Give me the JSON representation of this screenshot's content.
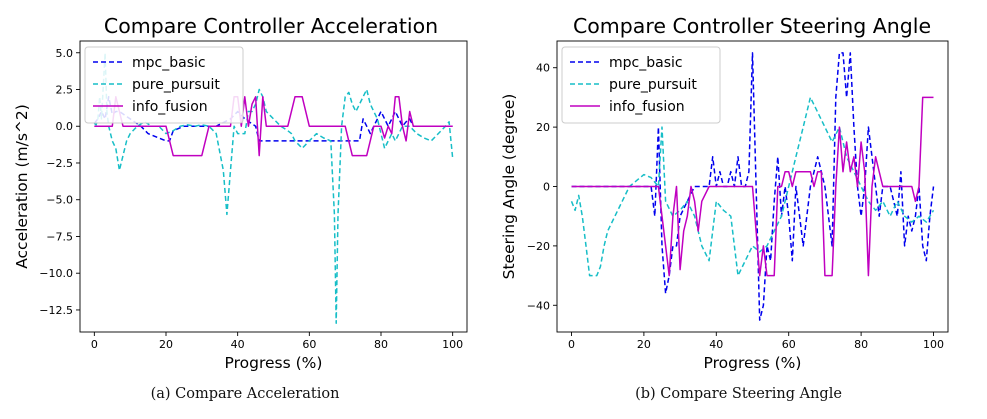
{
  "figure": {
    "captions": [
      "(a) Compare Acceleration",
      "(b) Compare Steering Angle"
    ]
  },
  "colors": {
    "mpc_basic": "#0000ee",
    "pure_pursuit": "#17bec7",
    "info_fusion": "#c000c0"
  },
  "chart_data": [
    {
      "type": "line",
      "title": "Compare Controller Acceleration",
      "xlabel": "Progress (%)",
      "ylabel": "Acceleration (m/s^2)",
      "xlim": [
        -4,
        104
      ],
      "ylim": [
        -14.0,
        5.8
      ],
      "xticks": [
        0,
        20,
        40,
        60,
        80,
        100
      ],
      "yticks": [
        5.0,
        2.5,
        0.0,
        -2.5,
        -5.0,
        -7.5,
        -10.0,
        -12.5
      ],
      "ytick_labels": [
        "5.0",
        "2.5",
        "0.0",
        "−2.5",
        "−5.0",
        "−7.5",
        "−10.0",
        "−12.5"
      ],
      "legend": "top-left",
      "grid": false,
      "series": [
        {
          "name": "mpc_basic",
          "style": "dashed",
          "x": [
            0,
            1,
            2,
            3,
            4,
            5,
            6,
            7,
            10,
            13,
            15,
            18,
            20,
            21,
            22,
            25,
            28,
            30,
            34,
            38,
            40,
            42,
            45,
            46,
            47,
            50,
            55,
            60,
            65,
            70,
            72,
            74,
            75,
            76,
            77,
            78,
            79,
            80,
            81,
            82,
            83,
            84,
            85,
            86,
            87,
            88,
            89,
            90,
            92,
            94,
            96,
            98,
            100
          ],
          "y": [
            0.2,
            0.5,
            1.0,
            0.5,
            2.0,
            0.8,
            1.0,
            1.0,
            0.5,
            0.0,
            -0.5,
            -0.8,
            -1.0,
            -1.0,
            -0.3,
            0.0,
            0.0,
            0.0,
            0.0,
            0.5,
            1.0,
            0.5,
            0.0,
            -1.0,
            -1.0,
            -1.0,
            -1.0,
            -1.0,
            -1.0,
            -1.0,
            -1.0,
            -1.0,
            0.5,
            0.0,
            -0.5,
            0.0,
            0.5,
            1.0,
            0.5,
            0.0,
            0.5,
            1.0,
            0.5,
            0.0,
            0.3,
            0.5,
            0.0,
            0.0,
            0.0,
            0.0,
            0.0,
            0.0,
            0.0
          ]
        },
        {
          "name": "pure_pursuit",
          "style": "dashed",
          "x": [
            0,
            0.5,
            1,
            1.5,
            2,
            3,
            3.5,
            4,
            5,
            6,
            7,
            8,
            9,
            10,
            12,
            14,
            16,
            18,
            20,
            22,
            24,
            26,
            28,
            30,
            32,
            34,
            36,
            37,
            38,
            39,
            40,
            41,
            42,
            43,
            44,
            45,
            46,
            47,
            48,
            50,
            52,
            54,
            55,
            56,
            58,
            60,
            62,
            64,
            66,
            67,
            67.5,
            68,
            69,
            70,
            71,
            72,
            73,
            74,
            75,
            76,
            77,
            78,
            79,
            80,
            81,
            82,
            83,
            84,
            85,
            86,
            88,
            90,
            92,
            94,
            96,
            98,
            99,
            100
          ],
          "y": [
            0.2,
            0.1,
            0.5,
            2.0,
            0.5,
            5.0,
            1.0,
            0.0,
            -1.0,
            -1.5,
            -3.0,
            -2.0,
            -1.0,
            -0.5,
            0.0,
            0.3,
            0.0,
            0.0,
            -0.5,
            -0.3,
            0.0,
            0.1,
            0.0,
            0.1,
            0.0,
            -0.5,
            -3.0,
            -6.0,
            -3.0,
            0.0,
            -0.5,
            -0.5,
            -0.5,
            1.0,
            1.0,
            1.5,
            2.5,
            2.0,
            1.0,
            0.5,
            0.0,
            -0.3,
            -0.5,
            -1.0,
            -1.5,
            -1.0,
            -0.5,
            -0.8,
            -1.0,
            -6.0,
            -13.4,
            -6.0,
            0.0,
            2.0,
            2.3,
            1.5,
            1.0,
            1.5,
            2.0,
            2.5,
            1.5,
            1.0,
            0.5,
            -0.5,
            -1.5,
            -1.0,
            -0.5,
            -1.0,
            -0.5,
            0.0,
            0.0,
            -0.5,
            -0.8,
            -1.0,
            -0.5,
            0.0,
            0.3,
            -2.2
          ]
        },
        {
          "name": "info_fusion",
          "style": "solid",
          "x": [
            0,
            3,
            5,
            6,
            7,
            8,
            10,
            12,
            14,
            18,
            20,
            22,
            26,
            28,
            30,
            32,
            34,
            36,
            38,
            39,
            40,
            41,
            42,
            43,
            44,
            45,
            46,
            47,
            48,
            50,
            52,
            54,
            56,
            58,
            60,
            62,
            64,
            66,
            68,
            70,
            72,
            74,
            76,
            78,
            80,
            81,
            82,
            83,
            84,
            85,
            86,
            87,
            88,
            89,
            90,
            92,
            94,
            96,
            98,
            100
          ],
          "y": [
            0.0,
            0.0,
            0.0,
            2.0,
            1.0,
            0.0,
            0.0,
            0.0,
            0.0,
            0.0,
            0.0,
            -2.0,
            -2.0,
            -2.0,
            -2.0,
            0.0,
            0.0,
            0.0,
            0.0,
            2.0,
            2.0,
            0.0,
            2.0,
            0.0,
            1.5,
            2.0,
            -2.0,
            2.0,
            0.0,
            0.0,
            0.0,
            0.0,
            2.0,
            2.0,
            0.0,
            0.0,
            0.0,
            0.0,
            0.0,
            0.0,
            -2.0,
            -2.0,
            -2.0,
            0.0,
            0.0,
            -0.8,
            0.0,
            -0.5,
            2.0,
            2.0,
            0.0,
            -1.0,
            1.0,
            0.0,
            0.0,
            0.0,
            0.0,
            0.0,
            0.0,
            0.0
          ]
        }
      ]
    },
    {
      "type": "line",
      "title": "Compare Controller Steering Angle",
      "xlabel": "Progress (%)",
      "ylabel": "Steering Angle (degree)",
      "xlim": [
        -4,
        104
      ],
      "ylim": [
        -49,
        49
      ],
      "xticks": [
        0,
        20,
        40,
        60,
        80,
        100
      ],
      "yticks": [
        40,
        20,
        0,
        -20,
        -40
      ],
      "ytick_labels": [
        "40",
        "20",
        "0",
        "−20",
        "−40"
      ],
      "legend": "top-left",
      "grid": false,
      "series": [
        {
          "name": "mpc_basic",
          "style": "dashed",
          "x": [
            0,
            5,
            10,
            15,
            20,
            21,
            22,
            23,
            24,
            25,
            26,
            27,
            28,
            29,
            30,
            32,
            34,
            36,
            38,
            39,
            40,
            41,
            42,
            43,
            44,
            45,
            46,
            47,
            48,
            49,
            50,
            51,
            52,
            53,
            54,
            55,
            56,
            57,
            58,
            59,
            60,
            61,
            62,
            63,
            64,
            65,
            66,
            68,
            70,
            72,
            73,
            74,
            75,
            76,
            77,
            78,
            79,
            80,
            81,
            82,
            83,
            84,
            85,
            86,
            88,
            90,
            91,
            92,
            93,
            94,
            95,
            96,
            97,
            98,
            99,
            100
          ],
          "y": [
            0,
            0,
            0,
            0,
            0,
            0,
            0,
            -10,
            20,
            -20,
            -36,
            -30,
            -20,
            -20,
            -10,
            -5,
            0,
            0,
            0,
            10,
            0,
            5,
            0,
            0,
            5,
            0,
            10,
            0,
            0,
            5,
            45,
            0,
            -45,
            -40,
            -20,
            -25,
            -5,
            10,
            -10,
            0,
            -10,
            -25,
            0,
            -10,
            -20,
            -10,
            0,
            10,
            0,
            -20,
            30,
            45,
            45,
            30,
            45,
            20,
            0,
            -10,
            0,
            20,
            10,
            0,
            -10,
            0,
            0,
            -10,
            5,
            -20,
            -10,
            -15,
            -10,
            0,
            -20,
            -25,
            -10,
            0
          ]
        },
        {
          "name": "pure_pursuit",
          "style": "dashed",
          "x": [
            0,
            1,
            2,
            3,
            4,
            5,
            6,
            7,
            8,
            9,
            10,
            12,
            14,
            16,
            18,
            20,
            22,
            24,
            25,
            26,
            28,
            30,
            32,
            34,
            36,
            38,
            40,
            42,
            44,
            45,
            46,
            48,
            50,
            52,
            54,
            56,
            58,
            60,
            62,
            64,
            66,
            68,
            70,
            72,
            74,
            76,
            78,
            80,
            82,
            84,
            86,
            88,
            90,
            92,
            94,
            96,
            98,
            100
          ],
          "y": [
            -5,
            -8,
            -3,
            -10,
            -20,
            -30,
            -30,
            -30,
            -27,
            -20,
            -15,
            -10,
            -5,
            0,
            2,
            4,
            3,
            0,
            20,
            -5,
            -10,
            -8,
            -5,
            -10,
            -20,
            -25,
            -5,
            -8,
            -10,
            -20,
            -30,
            -25,
            -20,
            -22,
            -20,
            -15,
            -10,
            0,
            10,
            20,
            30,
            25,
            20,
            15,
            20,
            10,
            5,
            0,
            -5,
            -8,
            -5,
            -10,
            -5,
            -10,
            -12,
            -10,
            -12,
            -8
          ]
        },
        {
          "name": "info_fusion",
          "style": "solid",
          "x": [
            0,
            5,
            10,
            15,
            20,
            22,
            23,
            24,
            25,
            26,
            27,
            28,
            29,
            30,
            31,
            32,
            33,
            34,
            35,
            36,
            38,
            40,
            42,
            44,
            46,
            48,
            49,
            50,
            51,
            52,
            53,
            54,
            55,
            56,
            57,
            58,
            59,
            60,
            61,
            62,
            63,
            64,
            65,
            66,
            67,
            68,
            69,
            70,
            71,
            72,
            73,
            74,
            75,
            76,
            77,
            78,
            79,
            80,
            81,
            82,
            83,
            84,
            85,
            86,
            88,
            90,
            92,
            94,
            95,
            96,
            97,
            98,
            100
          ],
          "y": [
            0,
            0,
            0,
            0,
            0,
            0,
            0,
            0,
            -10,
            -20,
            -30,
            -10,
            0,
            -28,
            -15,
            -10,
            0,
            -5,
            -15,
            -5,
            0,
            0,
            0,
            0,
            0,
            0,
            0,
            0,
            -15,
            -30,
            -20,
            -30,
            -30,
            -30,
            0,
            0,
            5,
            5,
            0,
            5,
            5,
            5,
            5,
            5,
            0,
            5,
            5,
            -30,
            -30,
            -30,
            0,
            20,
            5,
            15,
            5,
            10,
            0,
            15,
            5,
            -30,
            0,
            10,
            5,
            0,
            0,
            0,
            0,
            0,
            -5,
            0,
            30,
            30,
            30
          ]
        }
      ]
    }
  ]
}
